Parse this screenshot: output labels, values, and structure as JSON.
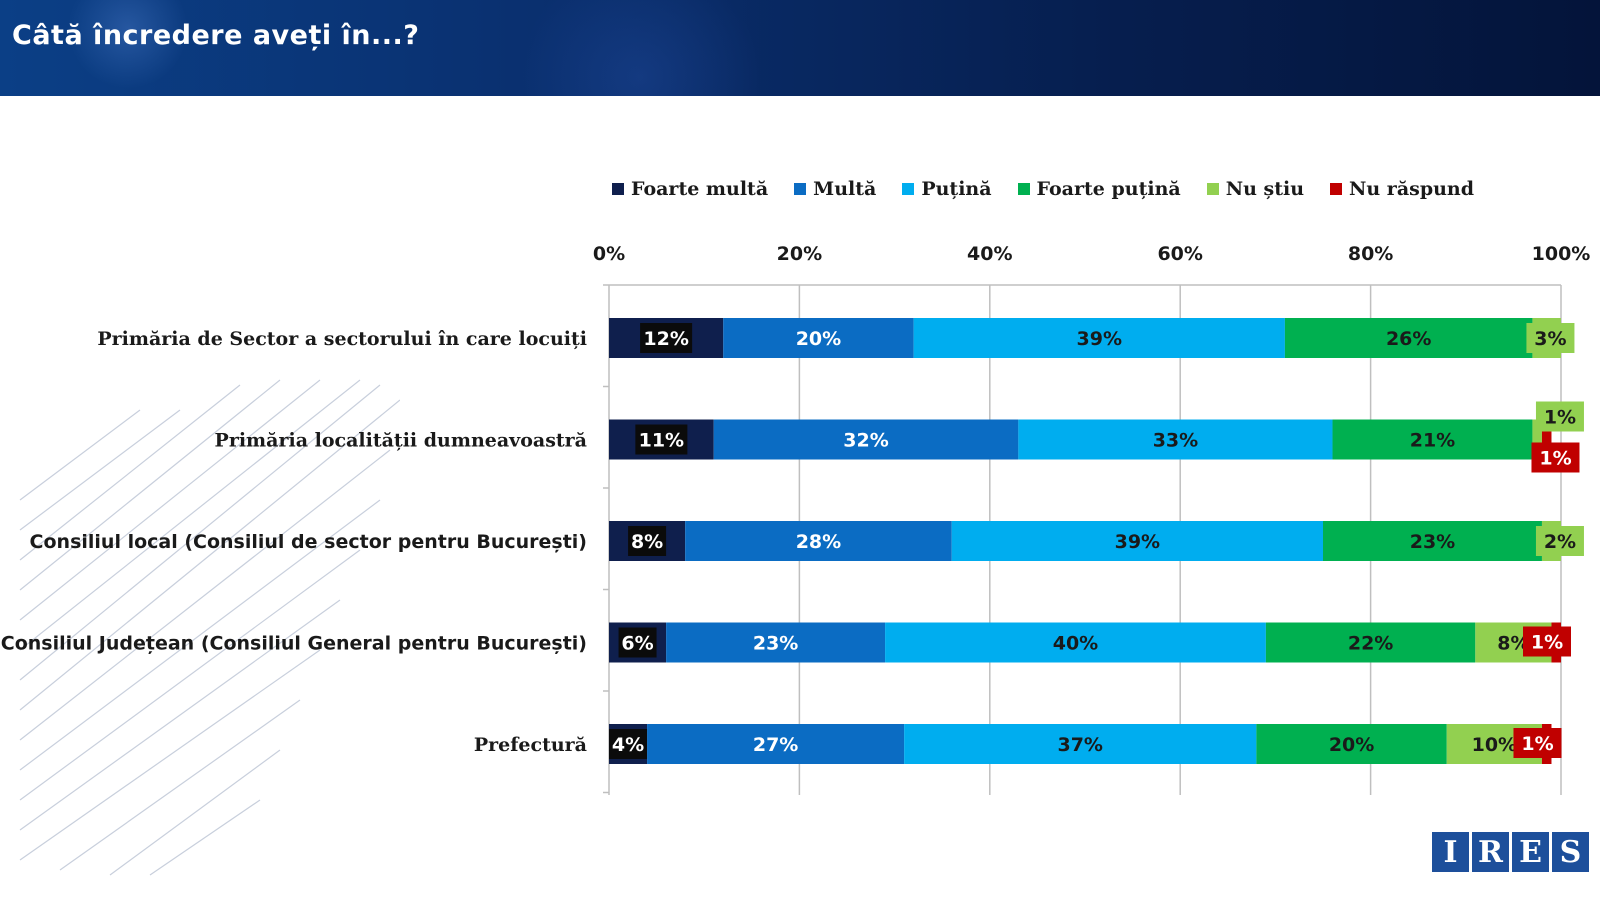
{
  "header": {
    "title": "Câtă încredere aveți în...?"
  },
  "logo": {
    "letters": [
      "I",
      "R",
      "E",
      "S"
    ]
  },
  "chart_data": {
    "type": "bar",
    "orientation": "horizontal",
    "stacked": true,
    "title": "Câtă încredere aveți în...?",
    "xlim": [
      0,
      100
    ],
    "x_ticks": [
      "0%",
      "20%",
      "40%",
      "60%",
      "80%",
      "100%"
    ],
    "categories": [
      "Primăria de Sector a sectorului în care locuiți",
      "Primăria localității dumneavoastră",
      "Consiliul local (Consiliul de sector pentru București)",
      "Consiliul Județean (Consiliul General pentru București)",
      "Prefectură"
    ],
    "series": [
      {
        "name": "Foarte multă",
        "color": "#0f1f4d",
        "values": [
          12,
          11,
          8,
          6,
          4
        ]
      },
      {
        "name": "Multă",
        "color": "#0b6cc3",
        "values": [
          20,
          32,
          28,
          23,
          27
        ]
      },
      {
        "name": "Puțină",
        "color": "#00adef",
        "values": [
          39,
          33,
          39,
          40,
          37
        ]
      },
      {
        "name": "Foarte puțină",
        "color": "#00b050",
        "values": [
          26,
          21,
          23,
          22,
          20
        ]
      },
      {
        "name": "Nu știu",
        "color": "#92d050",
        "values": [
          3,
          1,
          2,
          8,
          10
        ]
      },
      {
        "name": "Nu răspund",
        "color": "#c00000",
        "values": [
          0,
          1,
          0,
          1,
          1
        ]
      }
    ],
    "legend_position": "top",
    "grid": true
  }
}
